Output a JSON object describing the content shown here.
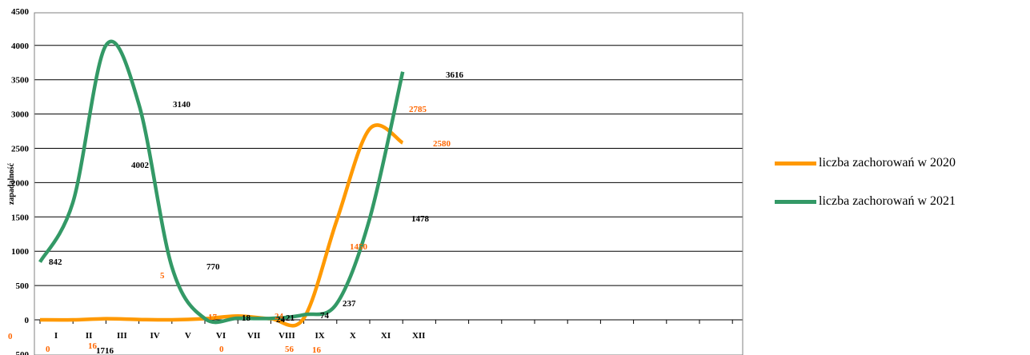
{
  "chart_data": {
    "type": "line",
    "ylabel": "zapadalność",
    "ylim": [
      -500,
      4500
    ],
    "yticks": [
      -500,
      0,
      500,
      1000,
      1500,
      2000,
      2500,
      3000,
      3500,
      4000,
      4500
    ],
    "categories": [
      "I",
      "II",
      "III",
      "IV",
      "V",
      "VI",
      "VII",
      "VIII",
      "IX",
      "X",
      "XI",
      "XII"
    ],
    "grid": true,
    "legend_position": "right",
    "series": [
      {
        "name": "liczba zachorowań w 2020",
        "color": "#ff9900",
        "values": [
          0,
          0,
          16,
          5,
          0,
          17,
          56,
          16,
          24,
          1450,
          2785,
          2580
        ],
        "labels": [
          "0",
          "0",
          "16",
          "5",
          "0",
          "17",
          "56",
          "16",
          "24",
          "1450",
          "2785",
          "2580"
        ]
      },
      {
        "name": "liczba zachorowań w 2021",
        "color": "#339966",
        "values": [
          842,
          1716,
          4002,
          3140,
          770,
          18,
          24,
          21,
          74,
          237,
          1478,
          3616
        ],
        "labels": [
          "842",
          "1716",
          "4002",
          "3140",
          "770",
          "18",
          "24",
          "21",
          "74",
          "237",
          "1478",
          "3616"
        ]
      }
    ]
  }
}
